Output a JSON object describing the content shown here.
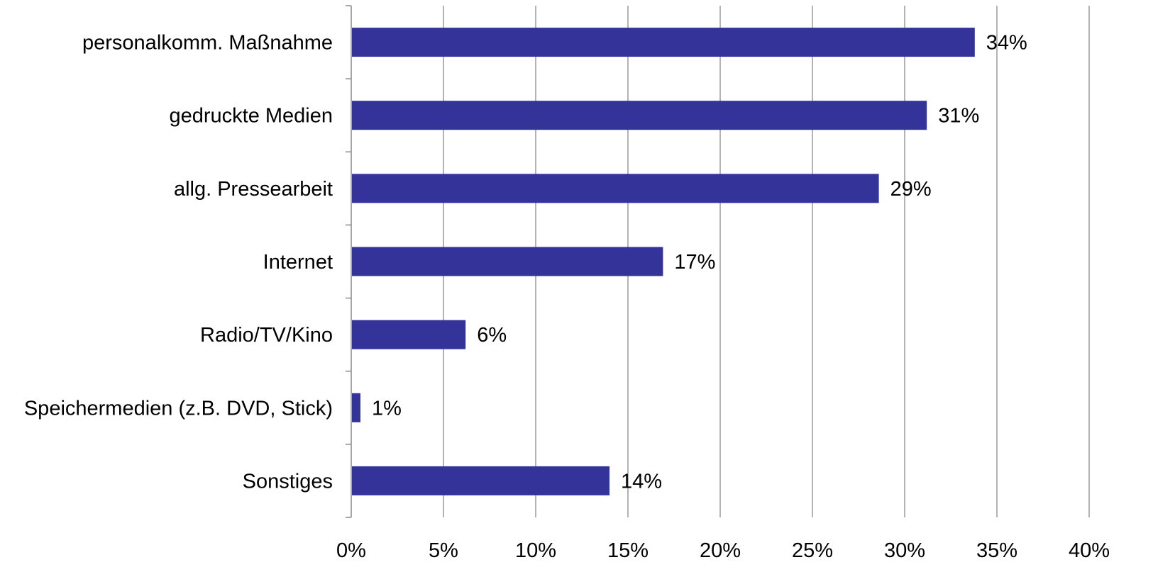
{
  "colors": {
    "bar": "#333399",
    "grid": "#9a9a9a",
    "axis": "#8a8a8a",
    "text": "#000000",
    "background": "#ffffff"
  },
  "chart_data": {
    "type": "bar",
    "orientation": "horizontal",
    "title": "",
    "xlabel": "",
    "ylabel": "",
    "categories": [
      "personalkomm. Maßnahme",
      "gedruckte Medien",
      "allg. Pressearbeit",
      "Internet",
      "Radio/TV/Kino",
      "Speichermedien (z.B. DVD, Stick)",
      "Sonstiges"
    ],
    "values": [
      33.8,
      31.2,
      28.6,
      16.9,
      6.2,
      0.5,
      14.0
    ],
    "data_labels": [
      "34%",
      "31%",
      "29%",
      "17%",
      "6%",
      "1%",
      "14%"
    ],
    "xlim": [
      0,
      40
    ],
    "x_ticks": [
      0,
      5,
      10,
      15,
      20,
      25,
      30,
      35,
      40
    ],
    "x_tick_labels": [
      "0%",
      "5%",
      "10%",
      "15%",
      "20%",
      "25%",
      "30%",
      "35%",
      "40%"
    ],
    "grid": "vertical",
    "legend": "none"
  }
}
